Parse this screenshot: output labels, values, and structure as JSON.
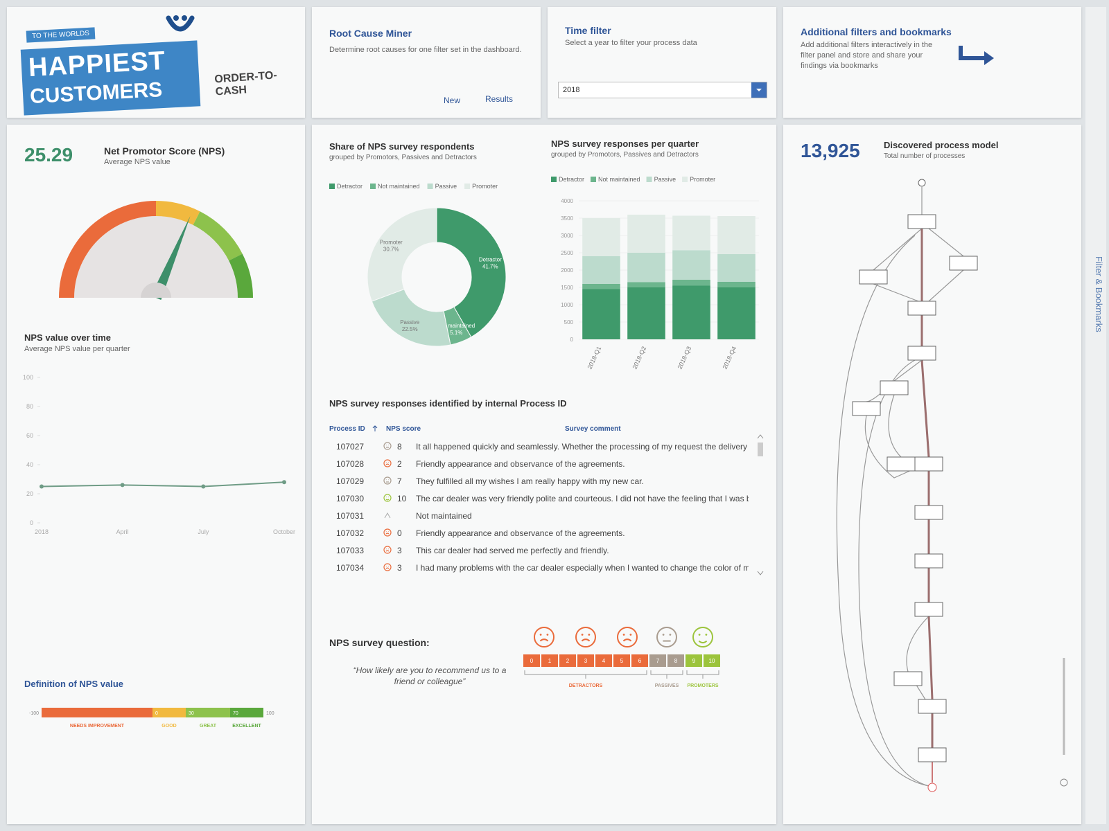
{
  "header": {
    "tagline": "TO THE WORLDS",
    "line1": "HAPPIEST",
    "line2": "CUSTOMERS",
    "app": "ORDER-TO-CASH"
  },
  "root_cause": {
    "title": "Root Cause Miner",
    "description": "Determine root causes for one filter set in the dashboard.",
    "buttons": [
      "New",
      "Results"
    ]
  },
  "time_filter": {
    "title": "Time filter",
    "description": "Select a year to filter your process data",
    "selected": "2018"
  },
  "bookmarks": {
    "title": "Additional filters and bookmarks",
    "description": "Add additional filters interactively in the filter panel and store and share your findings via bookmarks"
  },
  "side_panel": {
    "label": "Filter & Bookmarks"
  },
  "chart_data": [
    {
      "type": "gauge",
      "title": "Net Promotor Score (NPS)",
      "subtitle": "Average NPS value",
      "value": 25.29,
      "ylim": [
        -100,
        100
      ]
    },
    {
      "type": "line",
      "title": "NPS value over time",
      "subtitle": "Average NPS value per quarter",
      "categories": [
        "2018",
        "April",
        "July",
        "October"
      ],
      "values": [
        25,
        26,
        25,
        28
      ],
      "ylim": [
        0,
        100
      ],
      "yticks": [
        0,
        20,
        40,
        60,
        80,
        100
      ],
      "color": "#6f9c86"
    },
    {
      "type": "pie",
      "title": "Share of NPS survey respondents",
      "subtitle": "grouped by Promotors, Passives and Detractors",
      "categories": [
        "Detractor",
        "Not maintained",
        "Passive",
        "Promoter"
      ],
      "values": [
        41.7,
        5.1,
        22.5,
        30.7
      ],
      "value_labels": [
        "41.7%",
        "5.1%",
        "22.5%",
        "30.7%"
      ],
      "colors": [
        "#3f9a6b",
        "#6cb58d",
        "#bcdbcd",
        "#e1ebe6"
      ]
    },
    {
      "type": "bar",
      "stacked": true,
      "title": "NPS survey responses per quarter",
      "subtitle": "grouped by Promotors, Passives and Detractors",
      "categories": [
        "2018-Q1",
        "2018-Q2",
        "2018-Q3",
        "2018-Q4"
      ],
      "series": [
        {
          "name": "Detractor",
          "color": "#3f9a6b",
          "values": [
            1450,
            1500,
            1550,
            1500
          ]
        },
        {
          "name": "Not maintained",
          "color": "#6cb58d",
          "values": [
            150,
            150,
            170,
            160
          ]
        },
        {
          "name": "Passive",
          "color": "#bcdbcd",
          "values": [
            800,
            850,
            850,
            800
          ]
        },
        {
          "name": "Promoter",
          "color": "#e1ebe6",
          "values": [
            1100,
            1100,
            1000,
            1100
          ]
        }
      ],
      "ylim": [
        0,
        4000
      ],
      "yticks": [
        0,
        500,
        1000,
        1500,
        2000,
        2500,
        3000,
        3500,
        4000
      ],
      "grid": true
    }
  ],
  "nps_definition": {
    "title": "Definition of NPS value",
    "thresholds": [
      -100,
      0,
      30,
      70,
      100
    ],
    "segments": [
      {
        "name": "NEEDS IMPROVEMENT",
        "color": "#ea6b3b"
      },
      {
        "name": "GOOD",
        "color": "#f1b93f"
      },
      {
        "name": "GREAT",
        "color": "#8dc24c"
      },
      {
        "name": "EXCELLENT",
        "color": "#5aa83c"
      }
    ]
  },
  "table": {
    "title": "NPS survey responses identified by internal Process ID",
    "columns": [
      "Process ID",
      "NPS score",
      "Survey comment"
    ],
    "rows": [
      {
        "id": "107027",
        "score": 8,
        "comment": "It all happened quickly and seamlessly. Whether the processing of my request the delivery confirmati"
      },
      {
        "id": "107028",
        "score": 2,
        "comment": "Friendly appearance and observance of the agreements."
      },
      {
        "id": "107029",
        "score": 7,
        "comment": "They fulfilled all my wishes I am really happy with my new car."
      },
      {
        "id": "107030",
        "score": 10,
        "comment": "The car dealer was very friendly polite and courteous. I did not have the feeling that I was being f"
      },
      {
        "id": "107031",
        "score": null,
        "comment": "Not maintained"
      },
      {
        "id": "107032",
        "score": 0,
        "comment": "Friendly appearance and observance of the agreements."
      },
      {
        "id": "107033",
        "score": 3,
        "comment": "This car dealer had served me perfectly and friendly."
      },
      {
        "id": "107034",
        "score": 3,
        "comment": "I had many problems with the car dealer especially when I wanted to change the color of my car."
      }
    ]
  },
  "survey_question": {
    "title": "NPS survey question:",
    "question": "“How likely are you to recommend us to a friend or colleague”",
    "groups": [
      {
        "name": "DETRACTORS",
        "color": "#ea6b3b",
        "scores": [
          0,
          1,
          2,
          3,
          4,
          5,
          6
        ]
      },
      {
        "name": "PASSIVES",
        "color": "#a99c8f",
        "scores": [
          7,
          8
        ]
      },
      {
        "name": "PROMOTERS",
        "color": "#9cc43c",
        "scores": [
          9,
          10
        ]
      }
    ]
  },
  "process_model": {
    "count": "13,925",
    "title": "Discovered process model",
    "subtitle": "Total number of processes"
  }
}
